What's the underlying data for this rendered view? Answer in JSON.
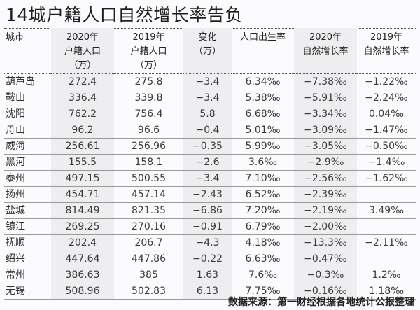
{
  "title": "14城户籍人口自然增长率告负",
  "table": {
    "headers": [
      {
        "lines": [
          "城市"
        ]
      },
      {
        "lines": [
          "2020年",
          "户籍人口",
          "（万）"
        ]
      },
      {
        "lines": [
          "2019年",
          "户籍人口",
          "（万）"
        ]
      },
      {
        "lines": [
          "变化",
          "（万）"
        ]
      },
      {
        "lines": [
          "人口出生率"
        ]
      },
      {
        "lines": [
          "2020年",
          "自然增长率"
        ]
      },
      {
        "lines": [
          "2019年",
          "自然增长率"
        ]
      }
    ],
    "rows": [
      [
        "葫芦岛",
        "272.4",
        "275.8",
        "−3.4",
        "6.34‰",
        "−7.38‰",
        "−1.22‰"
      ],
      [
        "鞍山",
        "336.4",
        "339.8",
        "−3.4",
        "5.38‰",
        "−5.91‰",
        "−2.24‰"
      ],
      [
        "沈阳",
        "762.2",
        "756.4",
        "5.8",
        "6.68‰",
        "−3.34‰",
        "0.04‰"
      ],
      [
        "舟山",
        "96.2",
        "96.6",
        "−0.4",
        "5.01‰",
        "−3.09‰",
        "−1.47‰"
      ],
      [
        "威海",
        "256.61",
        "256.96",
        "−0.35",
        "5.99‰",
        "−3.05‰",
        "−0.50‰"
      ],
      [
        "黑河",
        "155.5",
        "158.1",
        "−2.6",
        "3.6‰",
        "−2.9‰",
        "−1.4‰"
      ],
      [
        "泰州",
        "497.15",
        "500.55",
        "−3.4",
        "7.10‰",
        "−2.56‰",
        "−1.62‰"
      ],
      [
        "扬州",
        "454.71",
        "457.14",
        "−2.43",
        "6.52‰",
        "−2.39‰",
        ""
      ],
      [
        "盐城",
        "814.49",
        "821.35",
        "−6.86",
        "7.20‰",
        "−2.19‰",
        "3.49‰"
      ],
      [
        "镇江",
        "269.25",
        "270.16",
        "−0.91",
        "6.79‰",
        "−2.00‰",
        ""
      ],
      [
        "抚顺",
        "202.4",
        "206.7",
        "−4.3",
        "4.18‰",
        "−13.3‰",
        "−2.11‰"
      ],
      [
        "绍兴",
        "447.64",
        "447.86",
        "−0.22",
        "6.63‰",
        "−0.47‰",
        ""
      ],
      [
        "常州",
        "386.63",
        "385",
        "1.63",
        "7.6‰",
        "−0.3‰",
        "1.2‰"
      ],
      [
        "无锡",
        "508.96",
        "502.83",
        "6.13",
        "7.75‰",
        "−0.16‰",
        "1.18‰"
      ]
    ]
  },
  "source": "数据来源：第一财经根据各地统计公报整理",
  "colors": {
    "shade": "#eeeef0",
    "background": "#fbfbfd",
    "rule": "#9a9a9a"
  }
}
